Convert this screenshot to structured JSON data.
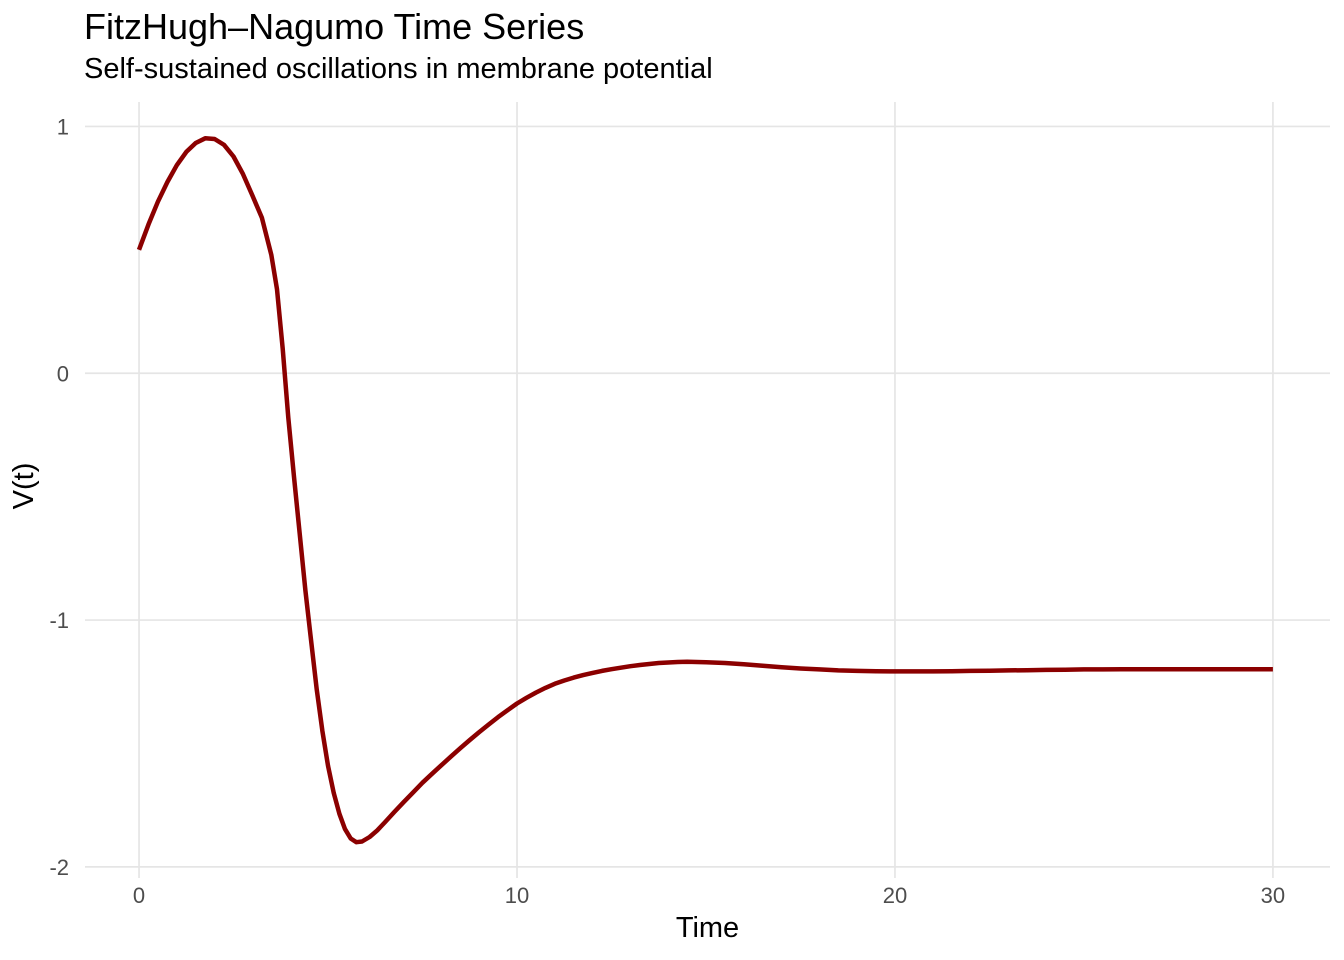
{
  "chart_data": {
    "type": "line",
    "title": "FitzHugh–Nagumo Time Series",
    "subtitle": "Self-sustained oscillations in membrane potential",
    "xlabel": "Time",
    "ylabel": "V(t)",
    "xlim": [
      0,
      30
    ],
    "ylim": [
      -2,
      1
    ],
    "x_ticks": [
      0,
      10,
      20,
      30
    ],
    "y_ticks": [
      1,
      0,
      -1,
      -2
    ],
    "grid": "major-only",
    "legend": "none",
    "background_color": "#FFFFFF",
    "gridline_color": "#E5E5E5",
    "tick_label_color": "#4D4D4D",
    "text_color": "#000000",
    "series": [
      {
        "name": "V(t)",
        "color": "#8B0000",
        "linewidth": 4.5,
        "points": [
          [
            0,
            0.5
          ],
          [
            0.25,
            0.603
          ],
          [
            0.5,
            0.695
          ],
          [
            0.75,
            0.775
          ],
          [
            1,
            0.843
          ],
          [
            1.25,
            0.897
          ],
          [
            1.5,
            0.933
          ],
          [
            1.75,
            0.952
          ],
          [
            2,
            0.949
          ],
          [
            2.25,
            0.925
          ],
          [
            2.5,
            0.878
          ],
          [
            2.75,
            0.807
          ],
          [
            3,
            0.72
          ],
          [
            3.25,
            0.63
          ],
          [
            3.5,
            0.48
          ],
          [
            3.65,
            0.34
          ],
          [
            3.8,
            0.1
          ],
          [
            3.95,
            -0.18
          ],
          [
            4.1,
            -0.42
          ],
          [
            4.25,
            -0.65
          ],
          [
            4.4,
            -0.88
          ],
          [
            4.55,
            -1.08
          ],
          [
            4.7,
            -1.28
          ],
          [
            4.85,
            -1.45
          ],
          [
            5,
            -1.59
          ],
          [
            5.15,
            -1.7
          ],
          [
            5.3,
            -1.785
          ],
          [
            5.45,
            -1.847
          ],
          [
            5.6,
            -1.885
          ],
          [
            5.75,
            -1.9
          ],
          [
            5.9,
            -1.897
          ],
          [
            6.1,
            -1.879
          ],
          [
            6.3,
            -1.852
          ],
          [
            6.5,
            -1.82
          ],
          [
            6.75,
            -1.778
          ],
          [
            7,
            -1.738
          ],
          [
            7.25,
            -1.698
          ],
          [
            7.5,
            -1.659
          ],
          [
            7.75,
            -1.623
          ],
          [
            8,
            -1.588
          ],
          [
            8.25,
            -1.553
          ],
          [
            8.5,
            -1.519
          ],
          [
            8.75,
            -1.486
          ],
          [
            9,
            -1.454
          ],
          [
            9.25,
            -1.423
          ],
          [
            9.5,
            -1.393
          ],
          [
            9.75,
            -1.365
          ],
          [
            10,
            -1.338
          ],
          [
            10.25,
            -1.315
          ],
          [
            10.5,
            -1.294
          ],
          [
            10.75,
            -1.275
          ],
          [
            11,
            -1.258
          ],
          [
            11.25,
            -1.245
          ],
          [
            11.5,
            -1.233
          ],
          [
            11.75,
            -1.223
          ],
          [
            12,
            -1.214
          ],
          [
            12.25,
            -1.206
          ],
          [
            12.5,
            -1.199
          ],
          [
            12.75,
            -1.193
          ],
          [
            13,
            -1.187
          ],
          [
            13.25,
            -1.182
          ],
          [
            13.5,
            -1.178
          ],
          [
            13.75,
            -1.174
          ],
          [
            14,
            -1.172
          ],
          [
            14.25,
            -1.17
          ],
          [
            14.5,
            -1.169
          ],
          [
            14.75,
            -1.17
          ],
          [
            15,
            -1.171
          ],
          [
            15.5,
            -1.174
          ],
          [
            16,
            -1.179
          ],
          [
            16.5,
            -1.185
          ],
          [
            17,
            -1.191
          ],
          [
            17.5,
            -1.196
          ],
          [
            18,
            -1.2
          ],
          [
            18.5,
            -1.204
          ],
          [
            19,
            -1.206
          ],
          [
            19.5,
            -1.207
          ],
          [
            20,
            -1.208
          ],
          [
            20.5,
            -1.208
          ],
          [
            21,
            -1.208
          ],
          [
            21.5,
            -1.207
          ],
          [
            22,
            -1.206
          ],
          [
            22.5,
            -1.205
          ],
          [
            23,
            -1.204
          ],
          [
            23.5,
            -1.203
          ],
          [
            24,
            -1.202
          ],
          [
            24.5,
            -1.201
          ],
          [
            25,
            -1.2
          ],
          [
            25.5,
            -1.2
          ],
          [
            26,
            -1.199
          ],
          [
            26.5,
            -1.199
          ],
          [
            27,
            -1.199
          ],
          [
            27.5,
            -1.199
          ],
          [
            28,
            -1.199
          ],
          [
            28.5,
            -1.199
          ],
          [
            29,
            -1.199
          ],
          [
            29.5,
            -1.199
          ],
          [
            30,
            -1.199
          ]
        ]
      }
    ]
  }
}
